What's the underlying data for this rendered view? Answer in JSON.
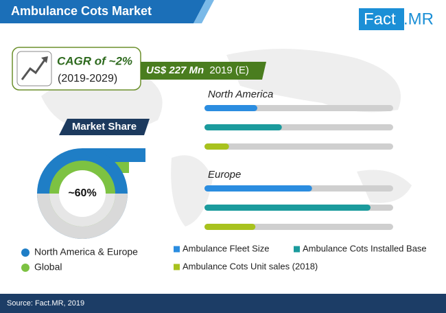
{
  "header": {
    "title": "Ambulance Cots Market",
    "brand": [
      "Fact",
      ".MR"
    ]
  },
  "cagr": {
    "label": "CAGR of ~2%",
    "period": "(2019-2029)"
  },
  "market_size": {
    "value": "US$ 227 Mn",
    "note": "2019 (E)"
  },
  "market_share": {
    "title": "Market Share",
    "label": "~60%",
    "legend": [
      {
        "name": "North America & Europe",
        "color": "#1f7ec6"
      },
      {
        "name": "Global",
        "color": "#7dc242"
      }
    ]
  },
  "chart_data": {
    "type": "bar",
    "orientation": "horizontal",
    "categories": [
      "North America",
      "Europe"
    ],
    "series": [
      {
        "name": "Ambulance Fleet Size",
        "color": "#2b8de0",
        "values": [
          28,
          57
        ]
      },
      {
        "name": "Ambulance Cots Installed Base",
        "color": "#1b9b9d",
        "values": [
          41,
          88
        ]
      },
      {
        "name": "Ambulance Cots Unit sales (2018)",
        "color": "#a8c21e",
        "values": [
          13,
          27
        ]
      }
    ],
    "xlim": [
      0,
      100
    ]
  },
  "source": "Source: Fact.MR, 2019"
}
